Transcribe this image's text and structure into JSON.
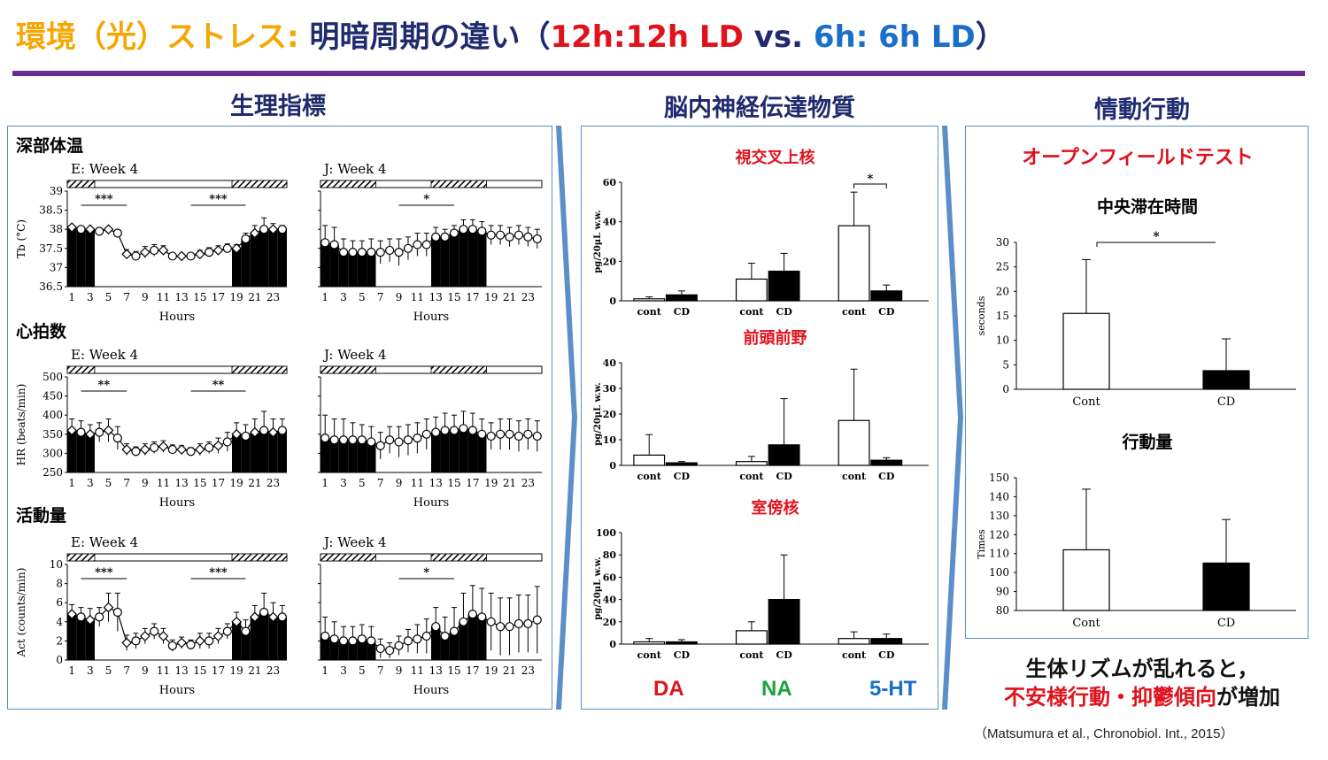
{
  "header": {
    "title_part1": "環境（光）ストレス:",
    "title_part2": "明暗周期の違い（",
    "title_part3": "12h:12h LD",
    "title_part4": " vs. ",
    "title_part5": "6h: 6h LD",
    "title_part6": "）",
    "colors": {
      "orange": "#f5a600",
      "navy": "#1f2b6e",
      "red": "#e0121c",
      "blue": "#1a6fc8",
      "rule": "#6a2c91",
      "green": "#1aa23c"
    }
  },
  "sections": {
    "physio": "生理指標",
    "neuro": "脳内神経伝達物質",
    "behavior": "情動行動"
  },
  "physio": {
    "labels": {
      "temp": "深部体温",
      "hr": "心拍数",
      "act": "活動量"
    },
    "xlabel": "Hours",
    "xticks": [
      "1",
      "3",
      "5",
      "7",
      "9",
      "11",
      "13",
      "15",
      "17",
      "19",
      "21",
      "23"
    ]
  },
  "neuro": {
    "bottom_labels": {
      "da": "DA",
      "na": "NA",
      "ht": "5-HT"
    }
  },
  "behavior": {
    "test_title": "オープンフィールドテスト"
  },
  "conclusion": {
    "line1": "生体リズムが乱れると，",
    "line2_red": "不安様行動・抑鬱傾向",
    "line2_black": "が増加"
  },
  "citation": "（Matsumura et al., Chronobiol. Int., 2015）",
  "chart_data": [
    {
      "type": "bar",
      "id": "temp-E",
      "title": "E: Week 4",
      "ylabel": "Tb (°C)",
      "xlabel": "Hours",
      "ylim": [
        36.5,
        39
      ],
      "yticks": [
        "36.5",
        "37",
        "37.5",
        "38",
        "38.5",
        "39"
      ],
      "light_schedule": "12h:12h LD",
      "x": [
        1,
        2,
        3,
        4,
        5,
        6,
        7,
        8,
        9,
        10,
        11,
        12,
        13,
        14,
        15,
        16,
        17,
        18,
        19,
        20,
        21,
        22,
        23,
        24
      ],
      "values": [
        38.05,
        38.0,
        38.0,
        37.95,
        38.0,
        37.9,
        37.35,
        37.3,
        37.4,
        37.45,
        37.45,
        37.3,
        37.3,
        37.3,
        37.35,
        37.4,
        37.45,
        37.5,
        37.5,
        37.75,
        37.9,
        38.0,
        38.0,
        38.0
      ],
      "errors": [
        0.05,
        0.05,
        0.05,
        0.05,
        0.05,
        0.08,
        0.12,
        0.12,
        0.15,
        0.15,
        0.12,
        0.08,
        0.06,
        0.06,
        0.1,
        0.12,
        0.12,
        0.12,
        0.1,
        0.15,
        0.2,
        0.3,
        0.15,
        0.1
      ],
      "annotations": [
        {
          "text": "***",
          "x": [
            2,
            7
          ]
        },
        {
          "text": "***",
          "x": [
            14,
            20
          ]
        }
      ]
    },
    {
      "type": "bar",
      "id": "temp-J",
      "title": "J: Week 4",
      "xlabel": "Hours",
      "ylim": [
        36.5,
        39
      ],
      "light_schedule": "6h:6h LD",
      "x": [
        1,
        2,
        3,
        4,
        5,
        6,
        7,
        8,
        9,
        10,
        11,
        12,
        13,
        14,
        15,
        16,
        17,
        18,
        19,
        20,
        21,
        22,
        23,
        24
      ],
      "values": [
        37.65,
        37.6,
        37.4,
        37.4,
        37.4,
        37.4,
        37.4,
        37.45,
        37.4,
        37.5,
        37.6,
        37.6,
        37.8,
        37.8,
        37.9,
        38.0,
        38.0,
        37.95,
        37.85,
        37.85,
        37.8,
        37.85,
        37.8,
        37.75
      ],
      "errors": [
        0.45,
        0.45,
        0.35,
        0.3,
        0.3,
        0.35,
        0.3,
        0.3,
        0.35,
        0.3,
        0.3,
        0.3,
        0.25,
        0.2,
        0.2,
        0.25,
        0.25,
        0.25,
        0.25,
        0.25,
        0.25,
        0.25,
        0.25,
        0.25
      ],
      "annotations": [
        {
          "text": "*",
          "x": [
            9,
            15
          ]
        }
      ]
    },
    {
      "type": "bar",
      "id": "hr-E",
      "title": "E: Week 4",
      "ylabel": "HR (beats/min)",
      "xlabel": "Hours",
      "ylim": [
        250,
        500
      ],
      "yticks": [
        "250",
        "300",
        "350",
        "400",
        "450",
        "500"
      ],
      "light_schedule": "12h:12h LD",
      "x": [
        1,
        2,
        3,
        4,
        5,
        6,
        7,
        8,
        9,
        10,
        11,
        12,
        13,
        14,
        15,
        16,
        17,
        18,
        19,
        20,
        21,
        22,
        23,
        24
      ],
      "values": [
        360,
        355,
        350,
        355,
        360,
        340,
        310,
        305,
        310,
        315,
        318,
        310,
        310,
        305,
        310,
        315,
        320,
        330,
        350,
        345,
        355,
        360,
        355,
        360
      ],
      "errors": [
        30,
        30,
        25,
        25,
        30,
        30,
        15,
        12,
        15,
        15,
        15,
        12,
        10,
        10,
        15,
        15,
        20,
        25,
        30,
        30,
        35,
        50,
        35,
        30
      ],
      "annotations": [
        {
          "text": "**",
          "x": [
            2,
            7
          ]
        },
        {
          "text": "**",
          "x": [
            14,
            20
          ]
        }
      ]
    },
    {
      "type": "bar",
      "id": "hr-J",
      "title": "J: Week 4",
      "xlabel": "Hours",
      "ylim": [
        250,
        500
      ],
      "light_schedule": "6h:6h LD",
      "x": [
        1,
        2,
        3,
        4,
        5,
        6,
        7,
        8,
        9,
        10,
        11,
        12,
        13,
        14,
        15,
        16,
        17,
        18,
        19,
        20,
        21,
        22,
        23,
        24
      ],
      "values": [
        340,
        335,
        335,
        335,
        335,
        330,
        320,
        335,
        330,
        335,
        340,
        350,
        355,
        360,
        360,
        365,
        360,
        350,
        345,
        350,
        350,
        345,
        350,
        345
      ],
      "errors": [
        60,
        55,
        55,
        45,
        40,
        40,
        35,
        35,
        40,
        40,
        40,
        40,
        40,
        45,
        40,
        45,
        45,
        40,
        35,
        40,
        40,
        40,
        40,
        40
      ]
    },
    {
      "type": "bar",
      "id": "act-E",
      "title": "E: Week 4",
      "ylabel": "Act (counts/min)",
      "xlabel": "Hours",
      "ylim": [
        0,
        10
      ],
      "yticks": [
        "0",
        "2",
        "4",
        "6",
        "8",
        "10"
      ],
      "light_schedule": "12h:12h LD",
      "x": [
        1,
        2,
        3,
        4,
        5,
        6,
        7,
        8,
        9,
        10,
        11,
        12,
        13,
        14,
        15,
        16,
        17,
        18,
        19,
        20,
        21,
        22,
        23,
        24
      ],
      "values": [
        4.8,
        4.5,
        4.2,
        4.5,
        5.5,
        5.0,
        1.8,
        2.0,
        2.5,
        3.0,
        2.5,
        1.5,
        1.8,
        1.6,
        2.0,
        2.0,
        2.5,
        3.0,
        4.0,
        3.0,
        4.5,
        5.0,
        4.5,
        4.5
      ],
      "errors": [
        1.0,
        1.0,
        1.2,
        1.0,
        1.5,
        2.0,
        0.8,
        0.8,
        0.8,
        0.8,
        0.8,
        0.6,
        0.6,
        0.5,
        0.8,
        0.8,
        0.8,
        0.8,
        1.0,
        1.2,
        1.2,
        2.0,
        1.5,
        1.2
      ],
      "annotations": [
        {
          "text": "***",
          "x": [
            2,
            7
          ]
        },
        {
          "text": "***",
          "x": [
            14,
            20
          ]
        }
      ]
    },
    {
      "type": "bar",
      "id": "act-J",
      "title": "J: Week 4",
      "xlabel": "Hours",
      "ylim": [
        0,
        10
      ],
      "light_schedule": "6h:6h LD",
      "x": [
        1,
        2,
        3,
        4,
        5,
        6,
        7,
        8,
        9,
        10,
        11,
        12,
        13,
        14,
        15,
        16,
        17,
        18,
        19,
        20,
        21,
        22,
        23,
        24
      ],
      "values": [
        2.5,
        2.2,
        2.0,
        2.0,
        2.2,
        2.0,
        1.2,
        1.0,
        1.5,
        2.0,
        2.2,
        2.5,
        3.5,
        2.5,
        3.0,
        4.0,
        4.8,
        4.5,
        4.0,
        3.5,
        3.5,
        3.8,
        3.8,
        4.2
      ],
      "errors": [
        2.0,
        1.8,
        1.5,
        1.5,
        1.5,
        1.5,
        1.0,
        0.8,
        1.0,
        1.2,
        1.5,
        1.8,
        2.0,
        2.0,
        2.5,
        3.0,
        3.0,
        3.0,
        3.0,
        3.0,
        3.0,
        3.0,
        3.0,
        3.5
      ],
      "annotations": [
        {
          "text": "*",
          "x": [
            9,
            15
          ]
        }
      ]
    },
    {
      "type": "bar",
      "id": "scn",
      "title": "視交叉上核",
      "ylabel": "pg/20μL w.w.",
      "ylim": [
        0,
        60
      ],
      "yticks": [
        "0",
        "20",
        "40",
        "60"
      ],
      "categories": [
        "cont",
        "CD",
        "cont",
        "CD",
        "cont",
        "CD"
      ],
      "groups": [
        "DA",
        "DA",
        "NA",
        "NA",
        "5-HT",
        "5-HT"
      ],
      "values": [
        1,
        3,
        11,
        15,
        38,
        5
      ],
      "errors": [
        1,
        2,
        8,
        9,
        17,
        3
      ],
      "annotations": [
        {
          "text": "*",
          "between": [
            4,
            5
          ]
        }
      ]
    },
    {
      "type": "bar",
      "id": "pfc",
      "title": "前頭前野",
      "ylabel": "pg/20μL w.w.",
      "ylim": [
        0,
        40
      ],
      "yticks": [
        "0",
        "10",
        "20",
        "30",
        "40"
      ],
      "categories": [
        "cont",
        "CD",
        "cont",
        "CD",
        "cont",
        "CD"
      ],
      "groups": [
        "DA",
        "DA",
        "NA",
        "NA",
        "5-HT",
        "5-HT"
      ],
      "values": [
        4,
        1,
        1.5,
        8,
        17.5,
        2
      ],
      "errors": [
        8,
        0.5,
        2,
        18,
        20,
        1
      ]
    },
    {
      "type": "bar",
      "id": "pvn",
      "title": "室傍核",
      "ylabel": "pg/20μL w.w.",
      "ylim": [
        0,
        100
      ],
      "yticks": [
        "0",
        "20",
        "40",
        "60",
        "80",
        "100"
      ],
      "categories": [
        "cont",
        "CD",
        "cont",
        "CD",
        "cont",
        "CD"
      ],
      "groups": [
        "DA",
        "DA",
        "NA",
        "NA",
        "5-HT",
        "5-HT"
      ],
      "values": [
        2,
        2,
        12,
        40,
        5,
        5
      ],
      "errors": [
        3,
        2,
        8,
        40,
        6,
        4
      ]
    },
    {
      "type": "bar",
      "id": "center-time",
      "title": "中央滞在時間",
      "ylabel": "seconds",
      "ylim": [
        0,
        30
      ],
      "yticks": [
        "0",
        "5",
        "10",
        "15",
        "20",
        "25",
        "30"
      ],
      "categories": [
        "Cont",
        "CD"
      ],
      "values": [
        15.5,
        3.8
      ],
      "errors": [
        11,
        6.5
      ],
      "annotations": [
        {
          "text": "*",
          "between": [
            0,
            1
          ]
        }
      ]
    },
    {
      "type": "bar",
      "id": "activity",
      "title": "行動量",
      "ylabel": "Times",
      "ylim": [
        80,
        150
      ],
      "yticks": [
        "80",
        "90",
        "100",
        "110",
        "120",
        "130",
        "140",
        "150"
      ],
      "categories": [
        "Cont",
        "CD"
      ],
      "values": [
        112,
        105
      ],
      "errors": [
        32,
        23
      ]
    }
  ]
}
